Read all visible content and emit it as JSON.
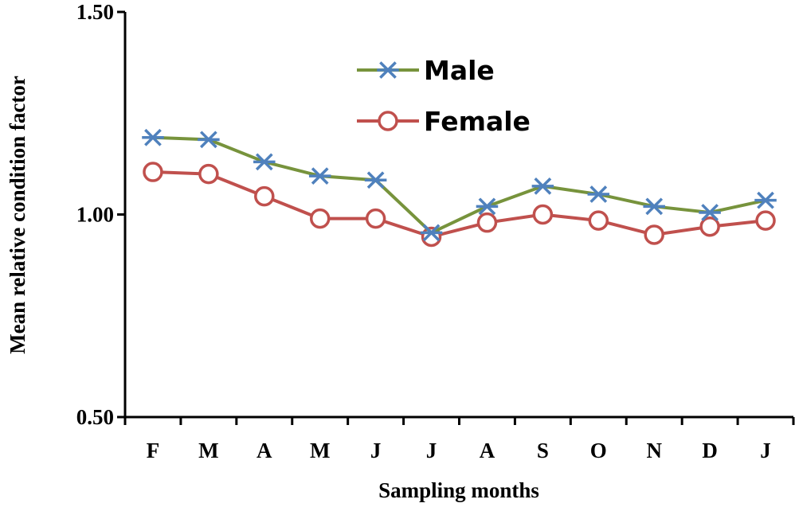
{
  "chart_data": {
    "type": "line",
    "title": "",
    "xlabel": "Sampling months",
    "ylabel": "Mean relative condition factor",
    "categories": [
      "F",
      "M",
      "A",
      "M",
      "J",
      "J",
      "A",
      "S",
      "O",
      "N",
      "D",
      "J"
    ],
    "ylim": [
      0.5,
      1.5
    ],
    "yticks": [
      "0.50",
      "1.00",
      "1.50"
    ],
    "grid": false,
    "legend_position": "top-center",
    "series": [
      {
        "name": "Male",
        "color": "#77933C",
        "marker": "asterisk",
        "marker_color": "#4F81BD",
        "values": [
          1.19,
          1.185,
          1.13,
          1.095,
          1.085,
          0.955,
          1.02,
          1.07,
          1.05,
          1.02,
          1.005,
          1.035
        ]
      },
      {
        "name": "Female",
        "color": "#C0504D",
        "marker": "circle",
        "marker_color": "#C0504D",
        "values": [
          1.105,
          1.1,
          1.045,
          0.99,
          0.99,
          0.945,
          0.98,
          1.0,
          0.985,
          0.95,
          0.97,
          0.985
        ]
      }
    ]
  }
}
